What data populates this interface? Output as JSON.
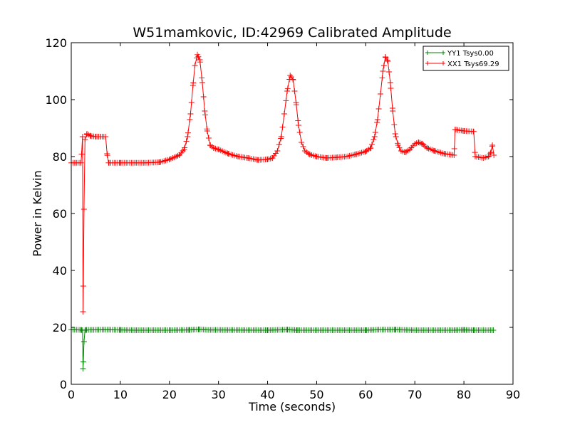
{
  "chart_data": {
    "type": "line",
    "title": "W51mamkovic, ID:42969 Calibrated Amplitude",
    "xlabel": "Time (seconds)",
    "ylabel": "Power in Kelvin",
    "xlim": [
      0,
      90
    ],
    "ylim": [
      0,
      120
    ],
    "xticks": [
      0,
      10,
      20,
      30,
      40,
      50,
      60,
      70,
      80,
      90
    ],
    "yticks": [
      0,
      20,
      40,
      60,
      80,
      100,
      120
    ],
    "grid": false,
    "legend": "top-right",
    "markers": "+",
    "series": [
      {
        "name": "YY1 Tsys0.00",
        "color": "#008000",
        "points": [
          [
            0,
            19.2
          ],
          [
            2.0,
            19.1
          ],
          [
            2.3,
            19.0
          ],
          [
            2.4,
            5.5
          ],
          [
            2.6,
            15.0
          ],
          [
            2.8,
            19.0
          ],
          [
            3,
            19.1
          ],
          [
            7,
            19.2
          ],
          [
            10,
            19.1
          ],
          [
            13,
            19.0
          ],
          [
            20,
            19.0
          ],
          [
            24,
            19.1
          ],
          [
            26,
            19.3
          ],
          [
            28,
            19.1
          ],
          [
            40,
            19.0
          ],
          [
            44,
            19.2
          ],
          [
            46,
            19.0
          ],
          [
            60,
            19.0
          ],
          [
            63,
            19.2
          ],
          [
            66,
            19.2
          ],
          [
            70,
            19.0
          ],
          [
            78,
            19.0
          ],
          [
            80,
            19.1
          ],
          [
            82,
            19.0
          ],
          [
            86,
            19.0
          ]
        ]
      },
      {
        "name": "XX1 Tsys69.29",
        "color": "#ff0000",
        "points": [
          [
            0,
            77.8
          ],
          [
            1,
            77.8
          ],
          [
            2.0,
            77.8
          ],
          [
            2.3,
            87.0
          ],
          [
            2.4,
            25.5
          ],
          [
            2.6,
            61.5
          ],
          [
            2.8,
            86.0
          ],
          [
            3.2,
            88.0
          ],
          [
            4,
            87.2
          ],
          [
            5,
            87.0
          ],
          [
            6,
            87.0
          ],
          [
            7,
            87.0
          ],
          [
            7.3,
            81.0
          ],
          [
            7.6,
            77.8
          ],
          [
            10,
            77.8
          ],
          [
            13,
            77.8
          ],
          [
            15,
            77.8
          ],
          [
            18,
            78.0
          ],
          [
            20,
            79.0
          ],
          [
            22,
            80.5
          ],
          [
            23,
            82.5
          ],
          [
            23.7,
            87.0
          ],
          [
            24.3,
            95.0
          ],
          [
            24.8,
            105.0
          ],
          [
            25.2,
            112.0
          ],
          [
            25.7,
            115.8
          ],
          [
            26.2,
            114.0
          ],
          [
            26.7,
            106.0
          ],
          [
            27.2,
            96.0
          ],
          [
            27.7,
            89.0
          ],
          [
            28.3,
            84.0
          ],
          [
            29,
            83.0
          ],
          [
            30,
            82.5
          ],
          [
            32,
            81.0
          ],
          [
            34,
            80.0
          ],
          [
            36,
            79.5
          ],
          [
            38,
            78.8
          ],
          [
            40,
            79.0
          ],
          [
            41,
            79.5
          ],
          [
            42,
            82.0
          ],
          [
            42.8,
            87.0
          ],
          [
            43.4,
            95.0
          ],
          [
            44,
            103.0
          ],
          [
            44.6,
            108.5
          ],
          [
            45.2,
            107.0
          ],
          [
            45.8,
            99.0
          ],
          [
            46.3,
            91.0
          ],
          [
            46.9,
            85.0
          ],
          [
            47.6,
            82.0
          ],
          [
            48.5,
            80.8
          ],
          [
            50,
            80.0
          ],
          [
            52,
            79.5
          ],
          [
            54,
            79.7
          ],
          [
            56,
            80.0
          ],
          [
            58,
            80.8
          ],
          [
            60,
            81.8
          ],
          [
            61,
            83.0
          ],
          [
            61.8,
            87.0
          ],
          [
            62.4,
            93.0
          ],
          [
            63,
            102.0
          ],
          [
            63.5,
            110.0
          ],
          [
            64,
            115.0
          ],
          [
            64.5,
            113.5
          ],
          [
            65,
            106.0
          ],
          [
            65.5,
            96.0
          ],
          [
            66,
            88.0
          ],
          [
            66.6,
            84.0
          ],
          [
            67.2,
            82.0
          ],
          [
            68,
            81.5
          ],
          [
            69,
            82.5
          ],
          [
            70,
            84.5
          ],
          [
            70.8,
            85.0
          ],
          [
            71.5,
            84.5
          ],
          [
            72.5,
            83.0
          ],
          [
            74,
            82.0
          ],
          [
            76,
            81.0
          ],
          [
            78,
            80.5
          ],
          [
            78.2,
            89.5
          ],
          [
            80,
            89.0
          ],
          [
            82,
            88.8
          ],
          [
            82.3,
            80.0
          ],
          [
            84,
            79.5
          ],
          [
            85,
            80.0
          ],
          [
            85.5,
            81.5
          ],
          [
            85.8,
            84.0
          ],
          [
            86.1,
            80.5
          ]
        ]
      }
    ]
  }
}
